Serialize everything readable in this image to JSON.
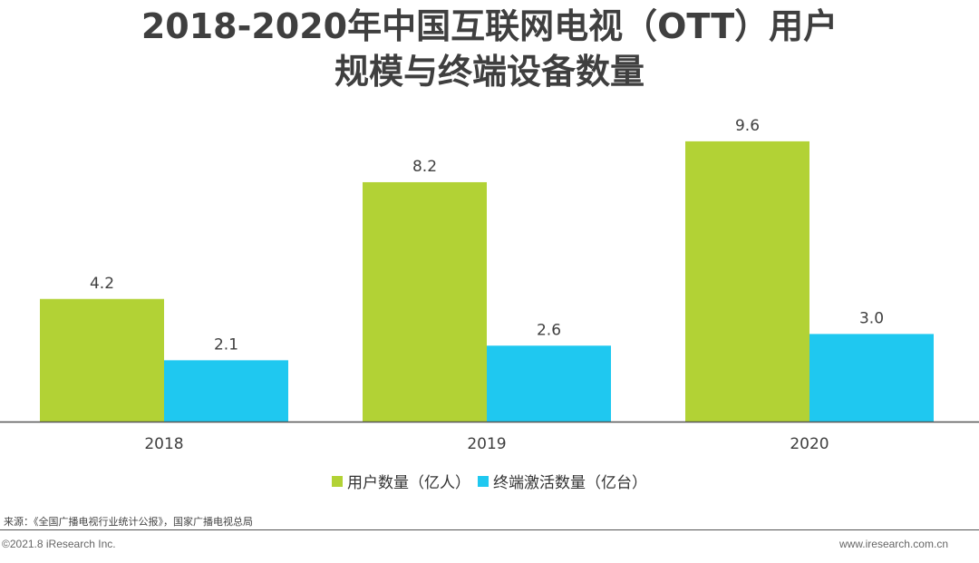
{
  "title_line1": "2018-2020年中国互联网电视（OTT）用户",
  "title_line2": "规模与终端设备数量",
  "source": "来源：《全国广播电视行业统计公报》，国家广播电视总局",
  "copyright": "©2021.8 iResearch Inc.",
  "website": "www.iresearch.com.cn",
  "colors": {
    "users": "#b2d235",
    "devices": "#1fc8f0",
    "axis": "#555555",
    "text": "#3f3f3f"
  },
  "chart_data": {
    "type": "bar",
    "title": "2018-2020年中国互联网电视（OTT）用户规模与终端设备数量",
    "categories": [
      "2018",
      "2019",
      "2020"
    ],
    "series": [
      {
        "name": "用户数量（亿人）",
        "values": [
          4.2,
          8.2,
          9.6
        ],
        "labels": [
          "4.2",
          "8.2",
          "9.6"
        ]
      },
      {
        "name": "终端激活数量（亿台）",
        "values": [
          2.1,
          2.6,
          3.0
        ],
        "labels": [
          "2.1",
          "2.6",
          "3.0"
        ]
      }
    ],
    "xlabel": "",
    "ylabel": "",
    "ylim": [
      0,
      10
    ],
    "grid": false,
    "legend_position": "bottom"
  }
}
